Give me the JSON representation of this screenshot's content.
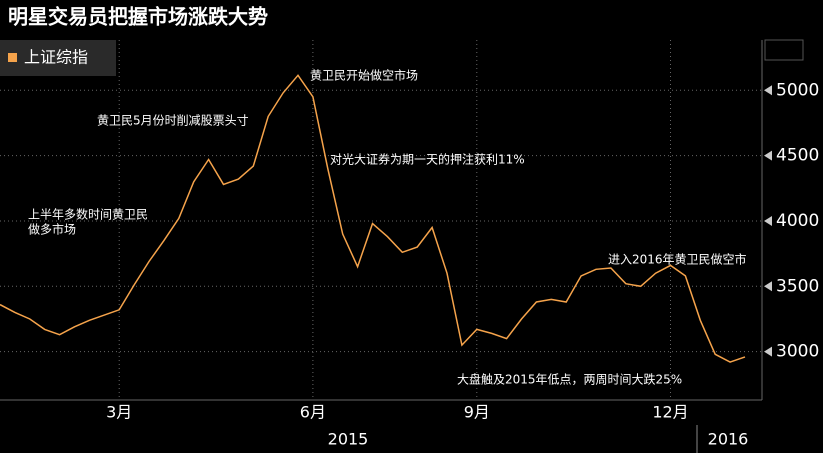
{
  "chart_data": {
    "type": "line",
    "title": "明星交易员把握市场涨跌大势",
    "categories": [
      "",
      null,
      null,
      null,
      null,
      null,
      null,
      null,
      "3月",
      null,
      null,
      null,
      null,
      null,
      null,
      null,
      null,
      null,
      null,
      null,
      null,
      "6月",
      null,
      null,
      null,
      null,
      null,
      null,
      null,
      null,
      null,
      null,
      "9月",
      null,
      null,
      null,
      null,
      null,
      null,
      null,
      null,
      null,
      null,
      null,
      null,
      "12月",
      null,
      null,
      null,
      null,
      null
    ],
    "year_labels": [
      "2015",
      "2016"
    ],
    "series": [
      {
        "name": "上证综指",
        "color": "#f5a34b",
        "values": [
          3360,
          3300,
          3250,
          3170,
          3130,
          3190,
          3240,
          3280,
          3320,
          3510,
          3690,
          3850,
          4020,
          4300,
          4470,
          4280,
          4320,
          4420,
          4800,
          4980,
          5115,
          4950,
          4400,
          3900,
          3650,
          3980,
          3880,
          3760,
          3800,
          3950,
          3600,
          3050,
          3170,
          3140,
          3100,
          3250,
          3380,
          3400,
          3380,
          3580,
          3630,
          3640,
          3520,
          3500,
          3600,
          3660,
          3580,
          3240,
          2980,
          2920,
          2960
        ]
      }
    ],
    "ylim": [
      2630,
      5270
    ],
    "yticks": [
      3000,
      3500,
      4000,
      4500,
      5000
    ],
    "grid": true,
    "annotations": [
      {
        "lines": [
          "黄卫民开始做空市场"
        ]
      },
      {
        "lines": [
          "黄卫民5月份时削减股票头寸"
        ]
      },
      {
        "lines": [
          "对光大证券为期一天的押注获利11%"
        ]
      },
      {
        "lines": [
          "上半年多数时间黄卫民",
          "做多市场"
        ]
      },
      {
        "lines": [
          "进入2016年黄卫民做空市"
        ]
      },
      {
        "lines": [
          "大盘触及2015年低点，两周时间大跌25%"
        ]
      }
    ]
  }
}
